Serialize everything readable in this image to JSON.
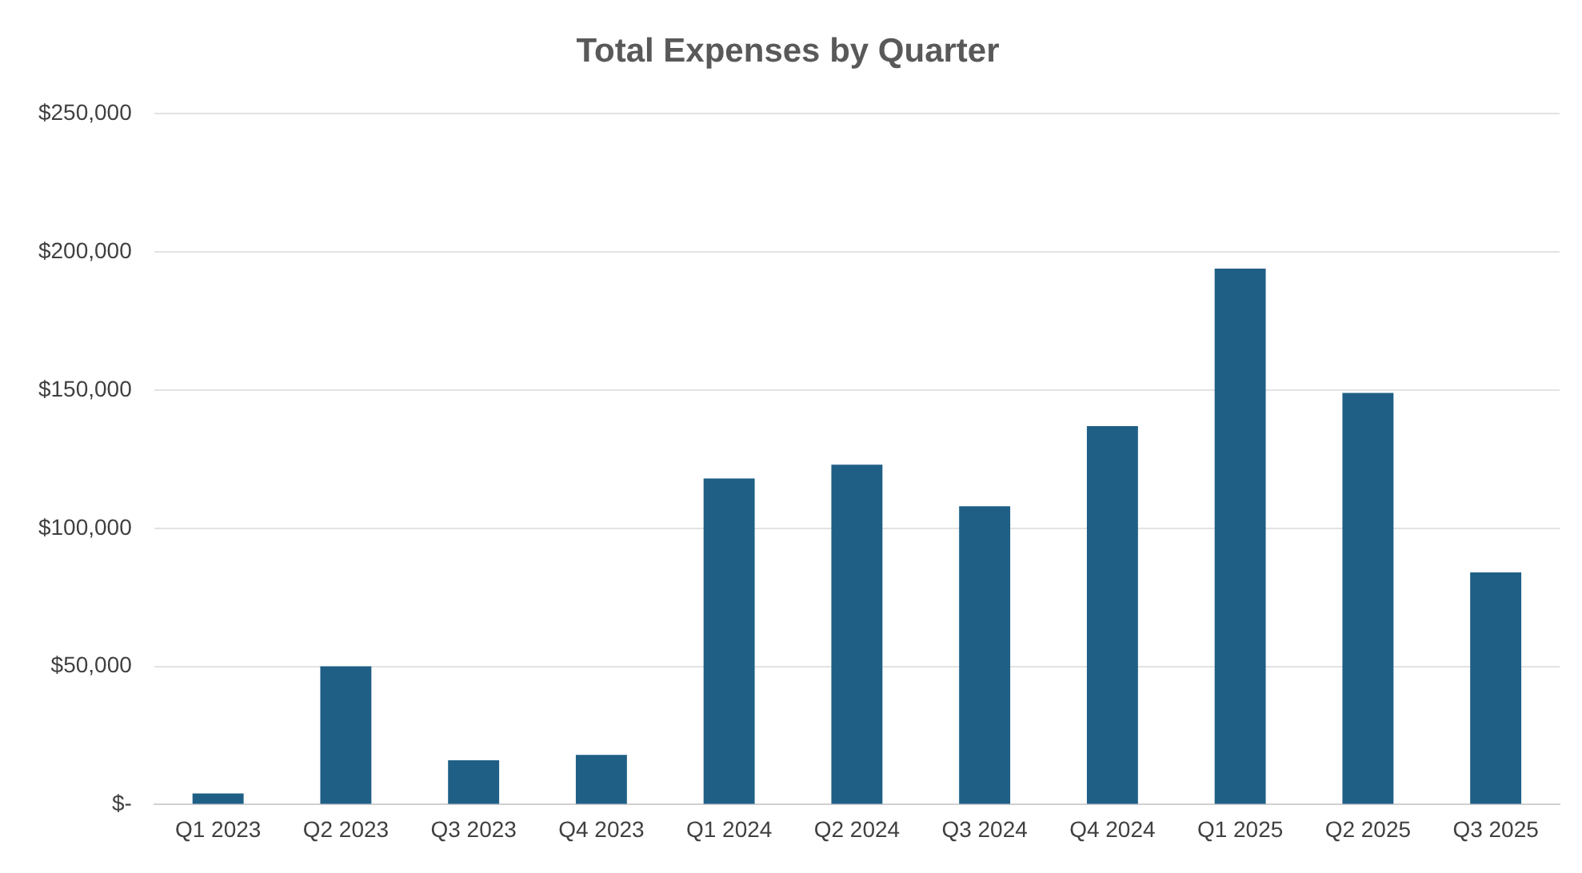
{
  "chart_data": {
    "type": "bar",
    "title": "Total Expenses by Quarter",
    "categories": [
      "Q1 2023",
      "Q2 2023",
      "Q3 2023",
      "Q4 2023",
      "Q1 2024",
      "Q2 2024",
      "Q3 2024",
      "Q4 2024",
      "Q1 2025",
      "Q2 2025",
      "Q3 2025"
    ],
    "values": [
      4000,
      50000,
      16000,
      18000,
      118000,
      123000,
      108000,
      137000,
      194000,
      149000,
      84000
    ],
    "color": "#1f5f86",
    "ylim": [
      0,
      250000
    ],
    "yticks": [
      {
        "value": 0,
        "label": "$-"
      },
      {
        "value": 50000,
        "label": "$50,000"
      },
      {
        "value": 100000,
        "label": "$100,000"
      },
      {
        "value": 150000,
        "label": "$150,000"
      },
      {
        "value": 200000,
        "label": "$200,000"
      },
      {
        "value": 250000,
        "label": "$250,000"
      }
    ],
    "grid": "y"
  }
}
